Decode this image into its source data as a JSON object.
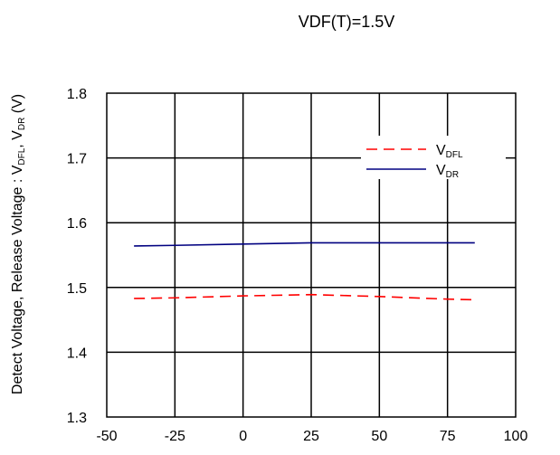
{
  "chart_data": {
    "type": "line",
    "title": "VDF(T)=1.5V",
    "ylabel_parts": {
      "main": "Detect Voltage, Release Voltage : V",
      "sub1": "DFL",
      "sep": ", V",
      "sub2": "DR",
      "unit": " (V)"
    },
    "xlabel": "",
    "xlim": [
      -50,
      100
    ],
    "ylim": [
      1.3,
      1.8
    ],
    "xticks": [
      -50,
      -25,
      0,
      25,
      50,
      75,
      100
    ],
    "yticks": [
      1.3,
      1.4,
      1.5,
      1.6,
      1.7,
      1.8
    ],
    "xtick_labels": [
      "-50",
      "-25",
      "0",
      "25",
      "50",
      "75",
      "100"
    ],
    "ytick_labels": [
      "1.3",
      "1.4",
      "1.5",
      "1.6",
      "1.7",
      "1.8"
    ],
    "grid": true,
    "legend_position": "top-right",
    "series": [
      {
        "key": "vdfl",
        "legend_main": "V",
        "legend_sub": "DFL",
        "color": "#ff0000",
        "style": "dashed",
        "x": [
          -40,
          -25,
          0,
          25,
          50,
          75,
          85
        ],
        "y": [
          1.483,
          1.484,
          1.487,
          1.489,
          1.486,
          1.482,
          1.481
        ]
      },
      {
        "key": "vdr",
        "legend_main": "V",
        "legend_sub": "DR",
        "color": "#000080",
        "style": "solid",
        "x": [
          -40,
          -25,
          0,
          25,
          50,
          75,
          85
        ],
        "y": [
          1.564,
          1.565,
          1.567,
          1.569,
          1.569,
          1.569,
          1.569
        ]
      }
    ]
  }
}
